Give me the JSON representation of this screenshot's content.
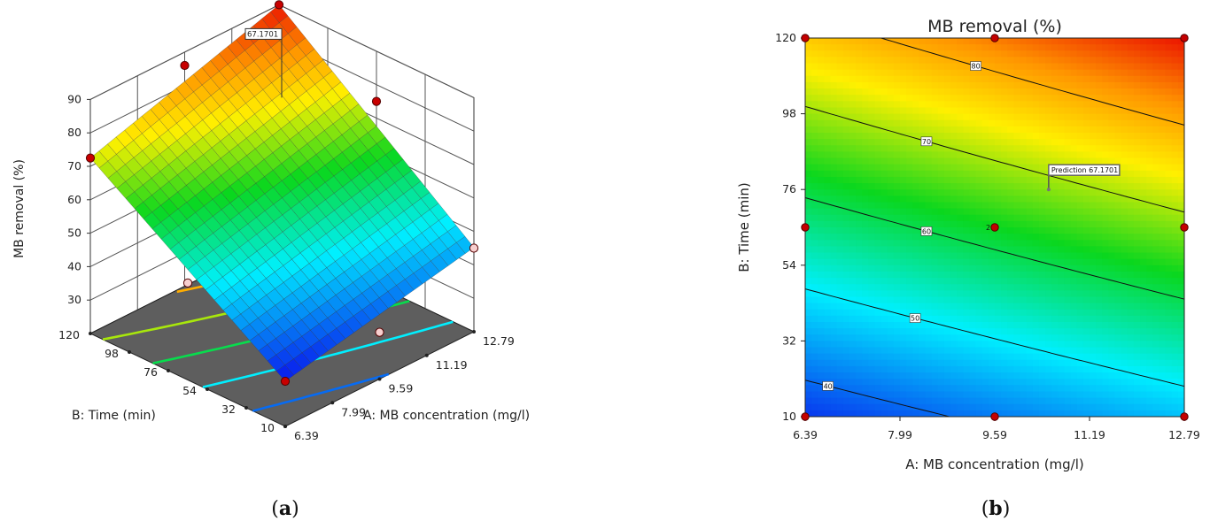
{
  "panel_a": {
    "tag": "a"
  },
  "panel_b": {
    "tag": "b"
  },
  "chart_data": [
    {
      "type": "surface",
      "panel": "a",
      "title": "",
      "zlabel": "MB removal (%)",
      "xlabel": "A: MB concentration  (mg/l)",
      "ylabel": "B: Time (min)",
      "z_ticks": [
        "30",
        "40",
        "50",
        "60",
        "70",
        "80",
        "90"
      ],
      "x_ticks": [
        "6.39",
        "7.99",
        "9.59",
        "11.19",
        "12.79"
      ],
      "y_ticks": [
        "10",
        "32",
        "54",
        "76",
        "98",
        "120"
      ],
      "zlim": [
        20,
        90
      ],
      "xlim": [
        6.39,
        12.79
      ],
      "ylim": [
        10,
        120
      ],
      "surface_corners": {
        "x6.39_y10": 33.5,
        "x12.79_y10": 45.2,
        "x6.39_y120": 72.5,
        "x12.79_y120": 90.0
      },
      "design_points": [
        {
          "x": 6.39,
          "y": 10,
          "z": 33.5
        },
        {
          "x": 12.79,
          "y": 10,
          "z": 45.0
        },
        {
          "x": 6.39,
          "y": 120,
          "z": 72.5
        },
        {
          "x": 12.79,
          "y": 120,
          "z": 90.0
        },
        {
          "x": 9.59,
          "y": 10,
          "z": 34.0
        },
        {
          "x": 9.59,
          "y": 120,
          "z": 86.0
        },
        {
          "x": 6.39,
          "y": 65,
          "z": 49.0
        },
        {
          "x": 12.79,
          "y": 65,
          "z": 75.0
        }
      ],
      "flag": {
        "text": "67.1701"
      }
    },
    {
      "type": "contour",
      "panel": "b",
      "title": "MB removal (%)",
      "xlabel": "A: MB concentration  (mg/l)",
      "ylabel": "B: Time (min)",
      "x_ticks": [
        "6.39",
        "7.99",
        "9.59",
        "11.19",
        "12.79"
      ],
      "y_ticks": [
        "10",
        "32",
        "54",
        "76",
        "98",
        "120"
      ],
      "xlim": [
        6.39,
        12.79
      ],
      "ylim": [
        10,
        120
      ],
      "corner_values": {
        "x6.39_y10": 36.0,
        "x12.79_y10": 46.5,
        "x6.39_y120": 77.5,
        "x12.79_y120": 90.0
      },
      "contour_levels": [
        40,
        50,
        60,
        70,
        80
      ],
      "contour_labels": [
        "40",
        "50",
        "60",
        "70",
        "80"
      ],
      "design_points": [
        {
          "x": 6.39,
          "y": 10
        },
        {
          "x": 9.59,
          "y": 10
        },
        {
          "x": 12.79,
          "y": 10
        },
        {
          "x": 6.39,
          "y": 65
        },
        {
          "x": 9.59,
          "y": 65
        },
        {
          "x": 12.79,
          "y": 65
        },
        {
          "x": 6.39,
          "y": 120
        },
        {
          "x": 9.59,
          "y": 120
        },
        {
          "x": 12.79,
          "y": 120
        }
      ],
      "center_point_count": "2",
      "prediction": {
        "label": "Prediction",
        "value": "67.1701",
        "x": 10.5,
        "y": 76
      }
    }
  ]
}
